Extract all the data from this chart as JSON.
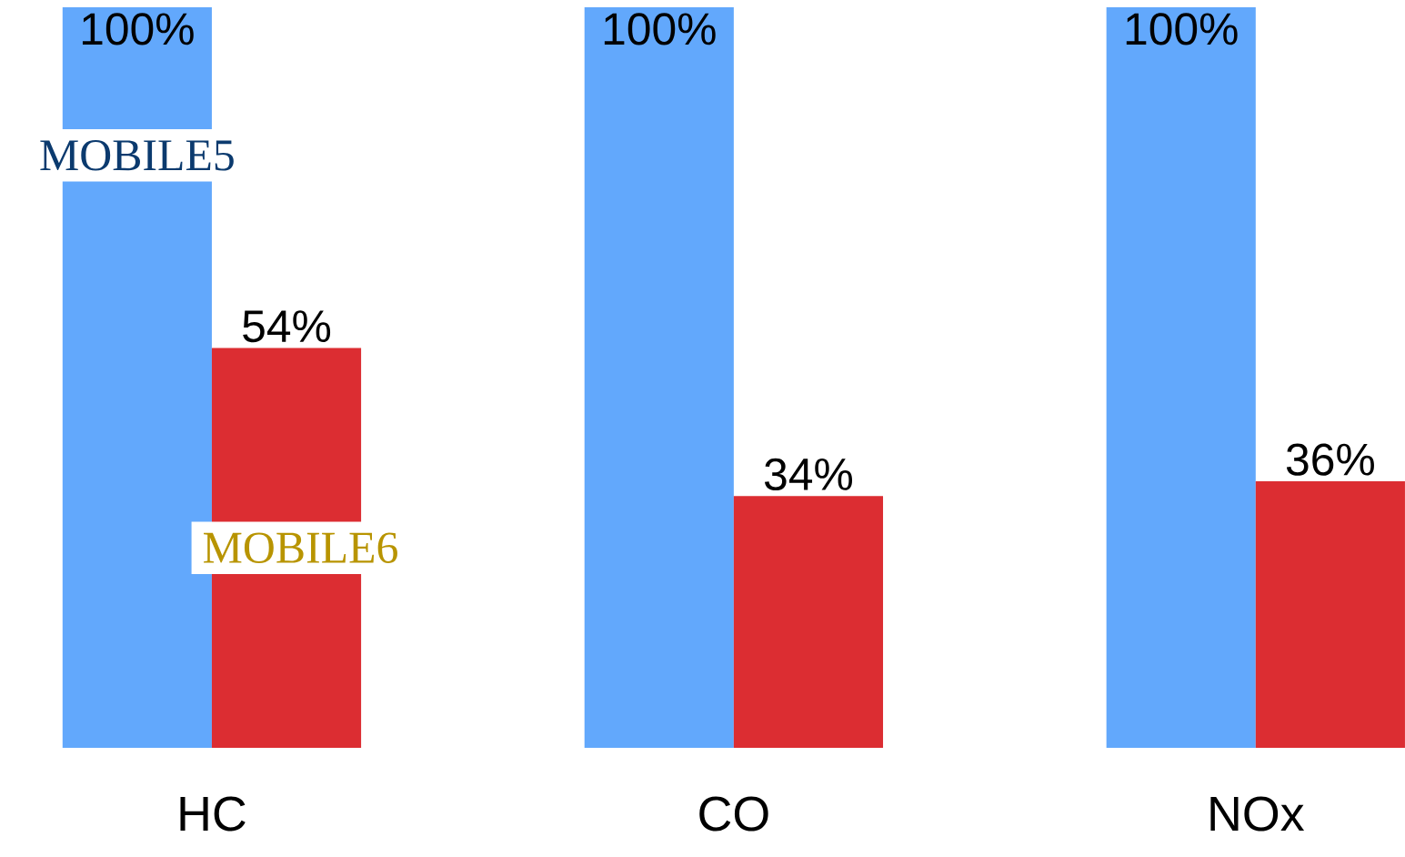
{
  "chart_data": {
    "type": "bar",
    "categories": [
      "HC",
      "CO",
      "NOx"
    ],
    "series": [
      {
        "name": "MOBILE5",
        "color": "#62a8fc",
        "values": [
          100,
          100,
          100
        ],
        "value_labels": [
          "100%",
          "100%",
          "100%"
        ]
      },
      {
        "name": "MOBILE6",
        "color": "#dc2d32",
        "values": [
          54,
          34,
          36
        ],
        "value_labels": [
          "54%",
          "34%",
          "36%"
        ]
      }
    ]
  }
}
